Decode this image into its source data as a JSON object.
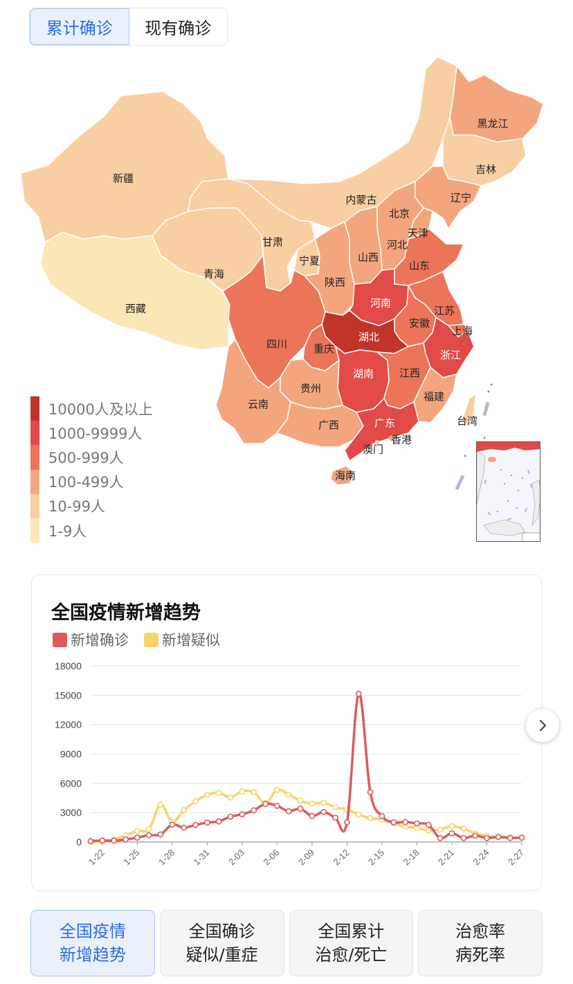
{
  "toggle": {
    "cumulative": "累计确诊",
    "current": "现有确诊"
  },
  "map": {
    "colors": {
      "level1": "#fbe7b6",
      "level2": "#f8cfa3",
      "level3": "#f3a67e",
      "level4": "#ec7559",
      "level5": "#e14a47",
      "level6": "#c1342a"
    },
    "provinces": {
      "xinjiang": "新疆",
      "xizang": "西藏",
      "qinghai": "青海",
      "gansu": "甘肃",
      "neimenggu": "内蒙古",
      "heilongjiang": "黑龙江",
      "jilin": "吉林",
      "liaoning": "辽宁",
      "beijing": "北京",
      "tianjin": "天津",
      "hebei": "河北",
      "shanxi": "山西",
      "shandong": "山东",
      "ningxia": "宁夏",
      "shaanxi": "陕西",
      "henan": "河南",
      "jiangsu": "江苏",
      "anhui": "安徽",
      "shanghai": "上海",
      "hubei": "湖北",
      "sichuan": "四川",
      "chongqing": "重庆",
      "zhejiang": "浙江",
      "hunan": "湖南",
      "jiangxi": "江西",
      "guizhou": "贵州",
      "yunnan": "云南",
      "fujian": "福建",
      "guangxi": "广西",
      "guangdong": "广东",
      "taiwan": "台湾",
      "xianggang": "香港",
      "aomen": "澳门",
      "hainan": "海南"
    }
  },
  "legend": [
    {
      "label": "10000人及以上",
      "color": "#c1342a"
    },
    {
      "label": "1000-9999人",
      "color": "#e14a47"
    },
    {
      "label": "500-999人",
      "color": "#ec7559"
    },
    {
      "label": "100-499人",
      "color": "#f3a67e"
    },
    {
      "label": "10-99人",
      "color": "#f8cfa3"
    },
    {
      "label": "1-9人",
      "color": "#fbe7b6"
    }
  ],
  "trend": {
    "title": "全国疫情新增趋势",
    "series_labels": {
      "confirmed": "新增确诊",
      "suspected": "新增疑似"
    },
    "series_colors": {
      "confirmed": "#d95c5c",
      "suspected": "#f7d36b"
    }
  },
  "chart_data": {
    "type": "line",
    "title": "全国疫情新增趋势",
    "ylim": [
      0,
      18000
    ],
    "yticks": [
      "18000",
      "15000",
      "12000",
      "9000",
      "6000",
      "3000",
      "0"
    ],
    "xticks": [
      "1-22",
      "1-25",
      "1-28",
      "1-31",
      "2-03",
      "2-06",
      "2-09",
      "2-12",
      "2-15",
      "2-18",
      "2-21",
      "2-24",
      "2-27"
    ],
    "x": [
      "1-21",
      "1-22",
      "1-23",
      "1-24",
      "1-25",
      "1-26",
      "1-27",
      "1-28",
      "1-29",
      "1-30",
      "1-31",
      "2-01",
      "2-02",
      "2-03",
      "2-04",
      "2-05",
      "2-06",
      "2-07",
      "2-08",
      "2-09",
      "2-10",
      "2-11",
      "2-12",
      "2-13",
      "2-14",
      "2-15",
      "2-16",
      "2-17",
      "2-18",
      "2-19",
      "2-20",
      "2-21",
      "2-22",
      "2-23",
      "2-24",
      "2-25",
      "2-26",
      "2-27"
    ],
    "series": [
      {
        "name": "新增确诊",
        "values": [
          77,
          149,
          131,
          259,
          444,
          688,
          769,
          1771,
          1459,
          1737,
          1982,
          2102,
          2590,
          2829,
          3235,
          3887,
          3694,
          3143,
          3399,
          2656,
          3062,
          2478,
          2015,
          15152,
          5090,
          2641,
          2009,
          2048,
          1886,
          1749,
          394,
          889,
          397,
          648,
          409,
          508,
          406,
          433
        ]
      },
      {
        "name": "新增疑似",
        "values": [
          27,
          26,
          257,
          680,
          1118,
          1309,
          3806,
          2077,
          3248,
          4148,
          4812,
          5019,
          4562,
          5173,
          5072,
          3971,
          5328,
          4833,
          4214,
          3916,
          4008,
          3536,
          3342,
          2807,
          2450,
          2277,
          1918,
          1563,
          1432,
          1185,
          1277,
          1614,
          1361,
          882,
          620,
          530,
          452,
          439
        ]
      }
    ]
  },
  "tabs": [
    {
      "line1": "全国疫情",
      "line2": "新增趋势"
    },
    {
      "line1": "全国确诊",
      "line2": "疑似/重症"
    },
    {
      "line1": "全国累计",
      "line2": "治愈/死亡"
    },
    {
      "line1": "治愈率",
      "line2": "病死率"
    }
  ]
}
